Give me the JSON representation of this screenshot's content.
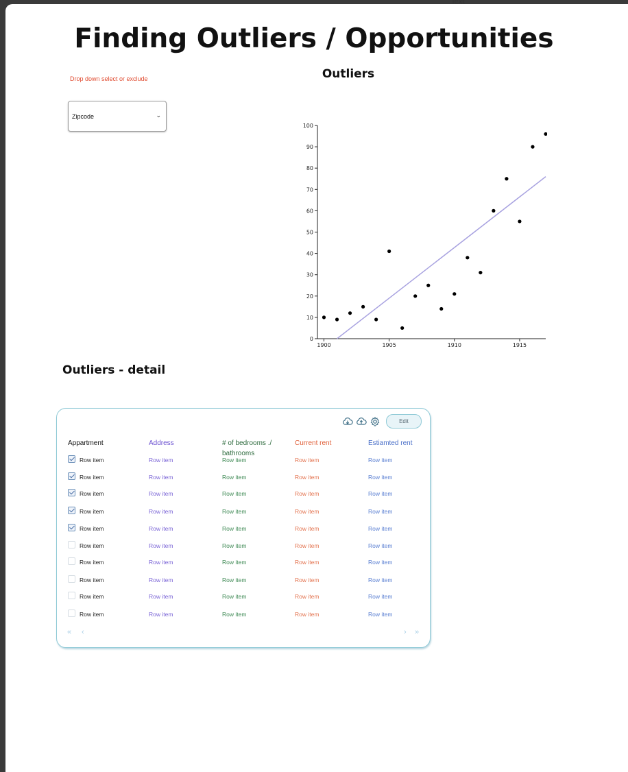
{
  "page": {
    "title": "Finding Outliers / Opportunities",
    "top_scrap": "Text"
  },
  "filter": {
    "hint": "Drop down select or exclude",
    "selected": "Zipcode",
    "chevron_icon": "chevron-down-icon"
  },
  "chart": {
    "title": "Outliers"
  },
  "chart_data": {
    "type": "scatter",
    "title": "Outliers",
    "x": [
      1900,
      1901,
      1902,
      1903,
      1904,
      1905,
      1906,
      1907,
      1908,
      1909,
      1910,
      1911,
      1912,
      1913,
      1914,
      1915,
      1916,
      1917
    ],
    "y": [
      10,
      9,
      12,
      15,
      9,
      41,
      5,
      20,
      25,
      14,
      21,
      38,
      31,
      60,
      75,
      55,
      90,
      96
    ],
    "xticks": [
      "1900",
      "1905",
      "1910",
      "1915"
    ],
    "yticks": [
      "0",
      "10",
      "20",
      "30",
      "40",
      "50",
      "60",
      "70",
      "80",
      "90",
      "100"
    ],
    "xlim": [
      1899.5,
      1917
    ],
    "ylim": [
      0,
      100
    ],
    "trendline": {
      "x1": 1901,
      "y1": 0,
      "x2": 1917,
      "y2": 76,
      "color": "#a8a2e0"
    },
    "grid": false
  },
  "detail": {
    "title": "Outliers - detail",
    "toolbar": {
      "download_icon": "cloud-download-icon",
      "upload_icon": "cloud-upload-icon",
      "settings_icon": "gear-icon",
      "edit_label": "Edit"
    },
    "columns": [
      {
        "label": "Appartment",
        "color": "#111111"
      },
      {
        "label": "Address",
        "color": "#6a4fd0"
      },
      {
        "label": "# of bedrooms ./ bathrooms",
        "color": "#2e6b3e"
      },
      {
        "label": "Current rent",
        "color": "#e0603a"
      },
      {
        "label": "Estiamted rent",
        "color": "#4a6fc8"
      }
    ],
    "rows": [
      {
        "checked": true,
        "cells": [
          "Row item",
          "Row item",
          "Row item",
          "Row item",
          "Row item"
        ]
      },
      {
        "checked": true,
        "cells": [
          "Row item",
          "Row item",
          "Row item",
          "Row item",
          "Row item"
        ]
      },
      {
        "checked": true,
        "cells": [
          "Row item",
          "Row item",
          "Row item",
          "Row item",
          "Row item"
        ]
      },
      {
        "checked": true,
        "cells": [
          "Row item",
          "Row item",
          "Row item",
          "Row item",
          "Row item"
        ]
      },
      {
        "checked": true,
        "cells": [
          "Row item",
          "Row item",
          "Row item",
          "Row item",
          "Row item"
        ]
      },
      {
        "checked": false,
        "cells": [
          "Row item",
          "Row item",
          "Row item",
          "Row item",
          "Row item"
        ]
      },
      {
        "checked": false,
        "cells": [
          "Row item",
          "Row item",
          "Row item",
          "Row item",
          "Row item"
        ]
      },
      {
        "checked": false,
        "cells": [
          "Row item",
          "Row item",
          "Row item",
          "Row item",
          "Row item"
        ]
      },
      {
        "checked": false,
        "cells": [
          "Row item",
          "Row item",
          "Row item",
          "Row item",
          "Row item"
        ]
      },
      {
        "checked": false,
        "cells": [
          "Row item",
          "Row item",
          "Row item",
          "Row item",
          "Row item"
        ]
      }
    ],
    "pager": {
      "first": "«",
      "prev": "‹",
      "next": "›",
      "last": "»"
    },
    "cell_colors": [
      "#222222",
      "#7a64d6",
      "#3f8a55",
      "#e3734f",
      "#5a7fd2"
    ]
  }
}
